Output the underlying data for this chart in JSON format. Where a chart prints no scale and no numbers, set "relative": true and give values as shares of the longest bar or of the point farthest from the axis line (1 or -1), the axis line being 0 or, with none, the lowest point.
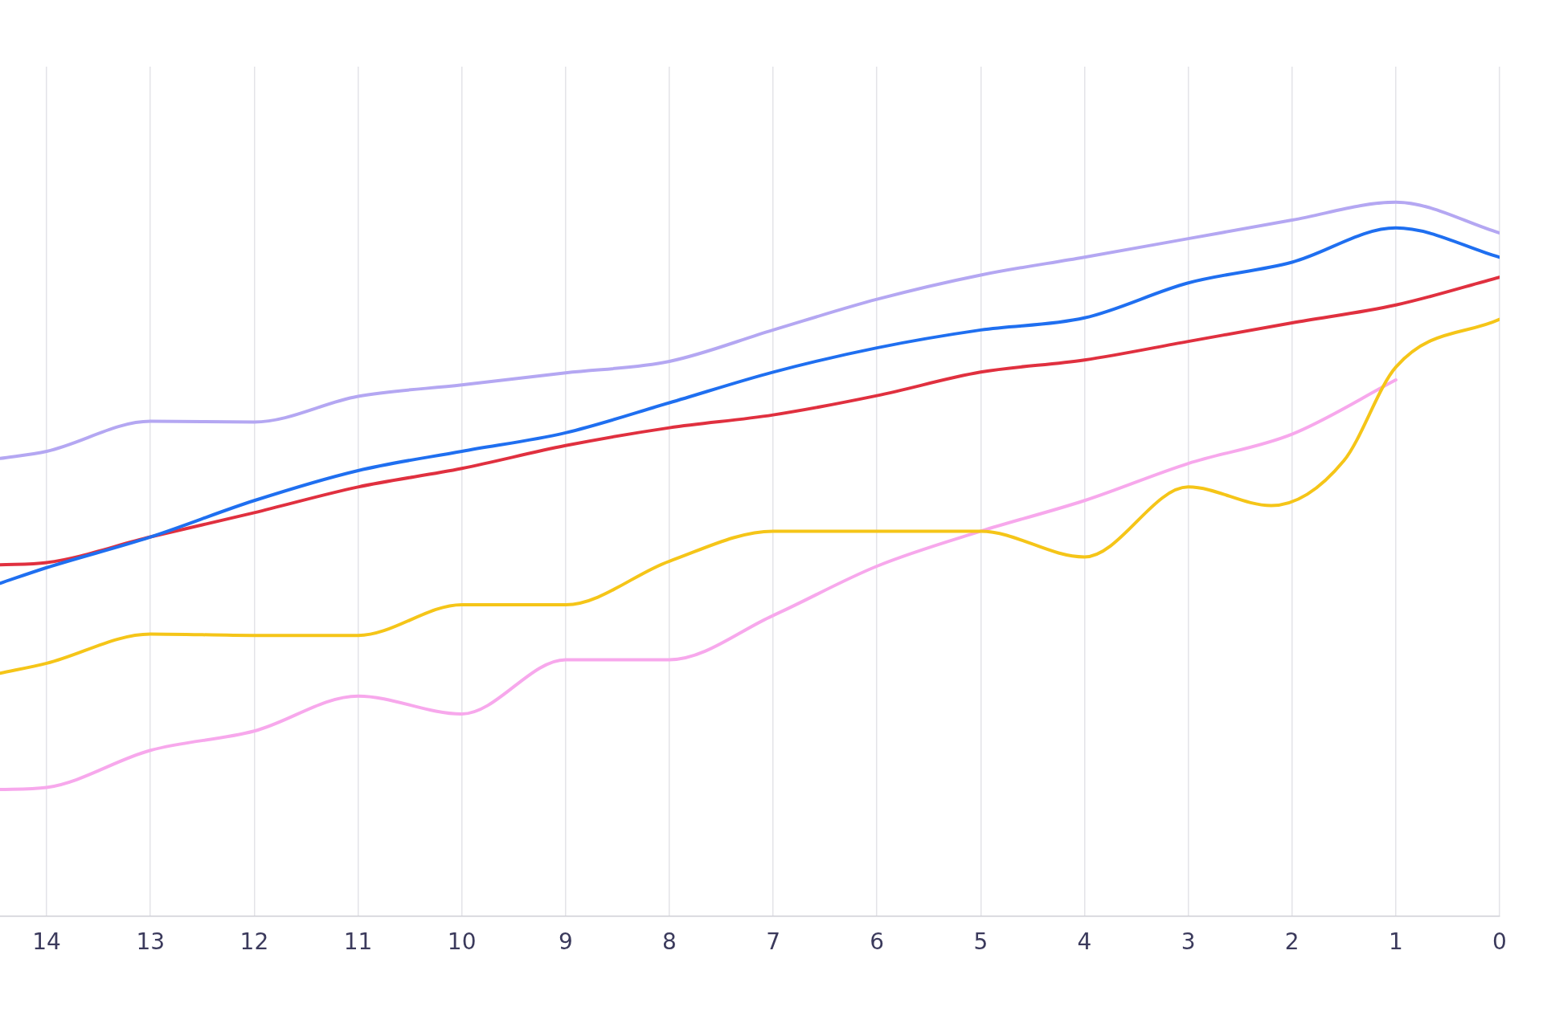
{
  "chart_data": {
    "type": "line",
    "relative": true,
    "xlim": [
      14.45,
      0
    ],
    "xticks": [
      14,
      13,
      12,
      11,
      10,
      9,
      8,
      7,
      6,
      5,
      4,
      3,
      2,
      1,
      0
    ],
    "grid": "x",
    "legend": false,
    "marker": "none",
    "line_style": "solid",
    "series": [
      {
        "color": "#b4a7f2",
        "x": [
          14.45,
          14,
          13,
          12,
          11,
          10,
          9,
          8,
          7,
          6,
          5,
          4,
          3,
          2,
          1,
          0
        ],
        "values": [
          0.641,
          0.651,
          0.693,
          0.692,
          0.728,
          0.744,
          0.761,
          0.777,
          0.821,
          0.864,
          0.898,
          0.923,
          0.949,
          0.975,
          1,
          0.957
        ]
      },
      {
        "color": "#1f6ff0",
        "x": [
          14.45,
          14,
          13,
          12,
          11,
          10,
          9,
          8,
          7,
          6,
          5,
          4,
          3,
          2,
          1,
          0
        ],
        "values": [
          0.466,
          0.488,
          0.531,
          0.582,
          0.624,
          0.651,
          0.677,
          0.719,
          0.762,
          0.796,
          0.821,
          0.838,
          0.887,
          0.916,
          0.964,
          0.923
        ]
      },
      {
        "color": "#e0303f",
        "x": [
          14.45,
          14,
          13,
          12,
          11,
          10,
          9,
          8,
          7,
          6,
          5,
          4,
          3,
          2,
          1,
          0
        ],
        "values": [
          0.492,
          0.495,
          0.531,
          0.565,
          0.601,
          0.627,
          0.659,
          0.684,
          0.702,
          0.729,
          0.762,
          0.779,
          0.805,
          0.831,
          0.856,
          0.895
        ]
      },
      {
        "color": "#f5c518",
        "x": [
          14.45,
          14,
          13,
          12,
          11,
          10,
          9,
          8,
          7,
          6,
          5,
          4,
          3,
          2.2,
          1.5,
          1,
          0
        ],
        "values": [
          0.34,
          0.354,
          0.395,
          0.393,
          0.393,
          0.436,
          0.436,
          0.497,
          0.539,
          0.539,
          0.539,
          0.503,
          0.601,
          0.575,
          0.638,
          0.769,
          0.836
        ]
      },
      {
        "color": "#f7a8ec",
        "x": [
          14.45,
          14,
          13,
          12,
          11,
          10,
          9,
          8,
          7,
          6,
          5,
          4,
          3,
          2,
          1
        ],
        "values": [
          0.177,
          0.18,
          0.232,
          0.259,
          0.308,
          0.283,
          0.359,
          0.359,
          0.421,
          0.49,
          0.539,
          0.582,
          0.634,
          0.675,
          0.751
        ]
      }
    ]
  }
}
